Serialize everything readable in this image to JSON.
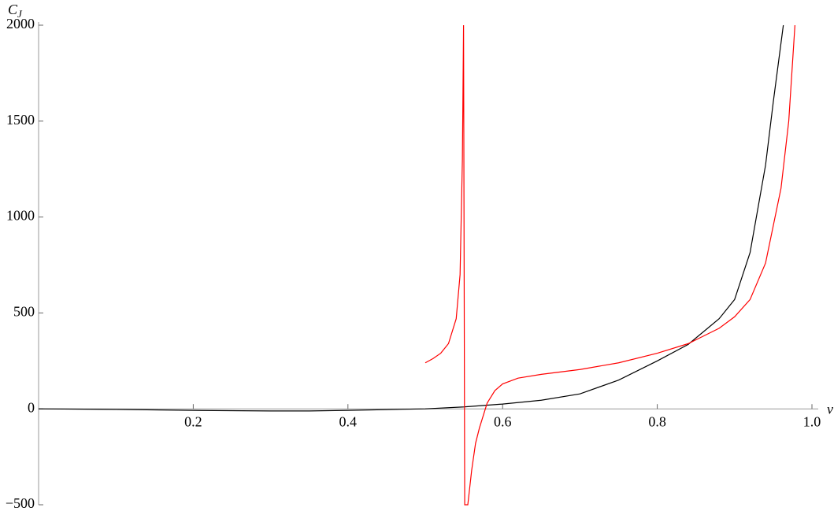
{
  "chart_data": {
    "type": "line",
    "x_label": "ν",
    "y_label": "C",
    "y_label_sub": "J",
    "xlim": [
      0,
      1
    ],
    "ylim": [
      -500,
      2000
    ],
    "xticks": [
      0.2,
      0.4,
      0.6,
      0.8,
      {
        "value": 1,
        "label": "1.0"
      }
    ],
    "yticks": [
      {
        "value": -500,
        "label": "−500"
      },
      0,
      500,
      1000,
      1500,
      2000
    ],
    "series": [
      {
        "color": "#000000",
        "x": [
          0,
          0.1,
          0.2,
          0.3,
          0.35,
          0.4,
          0.45,
          0.5,
          0.55,
          0.6,
          0.65,
          0.7,
          0.75,
          0.8,
          0.84,
          0.88,
          0.9,
          0.92,
          0.94,
          0.95,
          0.963
        ],
        "values": [
          0,
          -3,
          -8,
          -11,
          -11,
          -8,
          -4,
          0,
          10,
          25,
          45,
          78,
          150,
          250,
          336,
          470,
          570,
          815,
          1270,
          1600,
          2000
        ]
      },
      {
        "color": "#ff0000",
        "x": [
          0.5,
          0.51,
          0.52,
          0.53,
          0.54,
          0.545,
          0.548,
          0.5495,
          0.551,
          0.555,
          0.56,
          0.565,
          0.57,
          0.58,
          0.59,
          0.6,
          0.62,
          0.65,
          0.7,
          0.75,
          0.8,
          0.84,
          0.88,
          0.9,
          0.92,
          0.94,
          0.96,
          0.97,
          0.978
        ],
        "values": [
          240,
          262,
          290,
          340,
          470,
          700,
          1300,
          2000,
          -500,
          -500,
          -320,
          -180,
          -100,
          30,
          95,
          130,
          160,
          180,
          205,
          240,
          290,
          340,
          420,
          480,
          570,
          760,
          1150,
          1500,
          2000
        ]
      }
    ]
  }
}
